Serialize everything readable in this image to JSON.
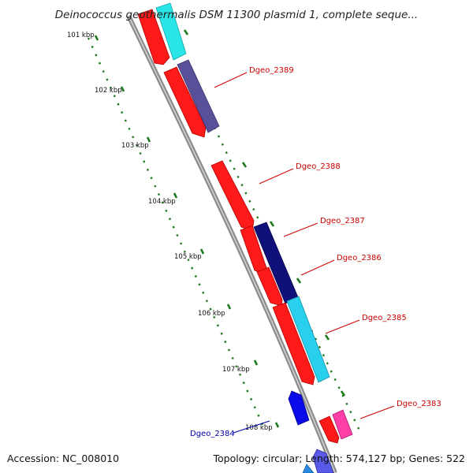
{
  "title": "Deinococcus geothermalis DSM 11300 plasmid 1, complete seque...",
  "footer": {
    "accession": "Accession: NC_008010",
    "summary": "Topology: circular; Length: 574,127 bp; Genes: 522"
  },
  "colors": {
    "backbone": "#8c8c8c",
    "tick": "#1f7a1f",
    "forward_label": "#cc0000",
    "reverse_label": "#0000aa"
  },
  "ticks": [
    {
      "label": "101 kbp"
    },
    {
      "label": "102 kbp"
    },
    {
      "label": "103 kbp"
    },
    {
      "label": "104 kbp"
    },
    {
      "label": "105 kbp"
    },
    {
      "label": "106 kbp"
    },
    {
      "label": "107 kbp"
    },
    {
      "label": "108 kbp"
    }
  ],
  "gene_labels": [
    {
      "name": "Dgeo_2389",
      "strand": "forward"
    },
    {
      "name": "Dgeo_2388",
      "strand": "forward"
    },
    {
      "name": "Dgeo_2387",
      "strand": "forward"
    },
    {
      "name": "Dgeo_2386",
      "strand": "forward"
    },
    {
      "name": "Dgeo_2385",
      "strand": "forward"
    },
    {
      "name": "Dgeo_2383",
      "strand": "forward"
    },
    {
      "name": "Dgeo_2384",
      "strand": "reverse"
    }
  ]
}
